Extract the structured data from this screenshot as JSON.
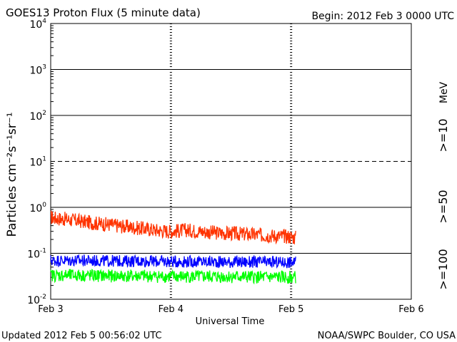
{
  "header": {
    "title": "GOES13 Proton Flux (5 minute data)",
    "begin": "Begin: 2012 Feb 3 0000 UTC"
  },
  "footer": {
    "updated": "Updated 2012 Feb  5 00:56:02 UTC",
    "credit": "NOAA/SWPC Boulder, CO USA"
  },
  "colors": {
    "ge10": "#ff3300",
    "ge50": "#0000ff",
    "ge100": "#00ff00",
    "ge50_label": "#6633cc"
  },
  "chart_data": {
    "type": "line",
    "title": "GOES13 Proton Flux (5 minute data)",
    "xlabel": "Universal Time",
    "ylabel": "Particles cm⁻²s⁻¹sr⁻¹",
    "y_scale": "log",
    "ylim": [
      0.01,
      10000
    ],
    "y_ticks": [
      {
        "exp": "-2",
        "value": 0.01
      },
      {
        "exp": "-1",
        "value": 0.1
      },
      {
        "exp": "0",
        "value": 1
      },
      {
        "exp": "1",
        "value": 10
      },
      {
        "exp": "2",
        "value": 100
      },
      {
        "exp": "3",
        "value": 1000
      },
      {
        "exp": "4",
        "value": 10000
      }
    ],
    "y_tick_base": "10",
    "x_range": [
      "2012-02-03 00:00",
      "2012-02-06 00:00"
    ],
    "x_ticks": [
      {
        "label": "Feb 3",
        "date": "2012-02-03"
      },
      {
        "label": "Feb 4",
        "date": "2012-02-04"
      },
      {
        "label": "Feb 5",
        "date": "2012-02-05"
      },
      {
        "label": "Feb 6",
        "date": "2012-02-06"
      }
    ],
    "threshold_line": {
      "value": 10,
      "style": "dashed"
    },
    "grid": "solid horizontal lines at each decade",
    "unit_label": "MeV",
    "series": [
      {
        "name": ">=10",
        "color": "#ff3300",
        "x": [
          "2012-02-03 00:00",
          "2012-02-03 03:00",
          "2012-02-03 06:00",
          "2012-02-03 09:00",
          "2012-02-03 12:00",
          "2012-02-03 15:00",
          "2012-02-03 18:00",
          "2012-02-03 21:00",
          "2012-02-04 00:00",
          "2012-02-04 03:00",
          "2012-02-04 06:00",
          "2012-02-04 09:00",
          "2012-02-04 12:00",
          "2012-02-04 15:00",
          "2012-02-04 18:00",
          "2012-02-04 21:00",
          "2012-02-05 00:00",
          "2012-02-05 00:55"
        ],
        "values": [
          0.6,
          0.55,
          0.5,
          0.45,
          0.42,
          0.38,
          0.35,
          0.32,
          0.3,
          0.32,
          0.3,
          0.28,
          0.27,
          0.26,
          0.25,
          0.24,
          0.23,
          0.22
        ]
      },
      {
        "name": ">=50",
        "color": "#0000ff",
        "x": [
          "2012-02-03 00:00",
          "2012-02-03 06:00",
          "2012-02-03 12:00",
          "2012-02-03 18:00",
          "2012-02-04 00:00",
          "2012-02-04 06:00",
          "2012-02-04 12:00",
          "2012-02-04 18:00",
          "2012-02-05 00:00",
          "2012-02-05 00:55"
        ],
        "values": [
          0.07,
          0.07,
          0.068,
          0.068,
          0.066,
          0.066,
          0.065,
          0.064,
          0.064,
          0.063
        ]
      },
      {
        "name": ">=100",
        "color": "#00ff00",
        "x": [
          "2012-02-03 00:00",
          "2012-02-03 06:00",
          "2012-02-03 12:00",
          "2012-02-03 18:00",
          "2012-02-04 00:00",
          "2012-02-04 06:00",
          "2012-02-04 12:00",
          "2012-02-04 18:00",
          "2012-02-05 00:00",
          "2012-02-05 00:55"
        ],
        "values": [
          0.033,
          0.033,
          0.032,
          0.032,
          0.031,
          0.031,
          0.031,
          0.03,
          0.03,
          0.03
        ]
      }
    ]
  }
}
